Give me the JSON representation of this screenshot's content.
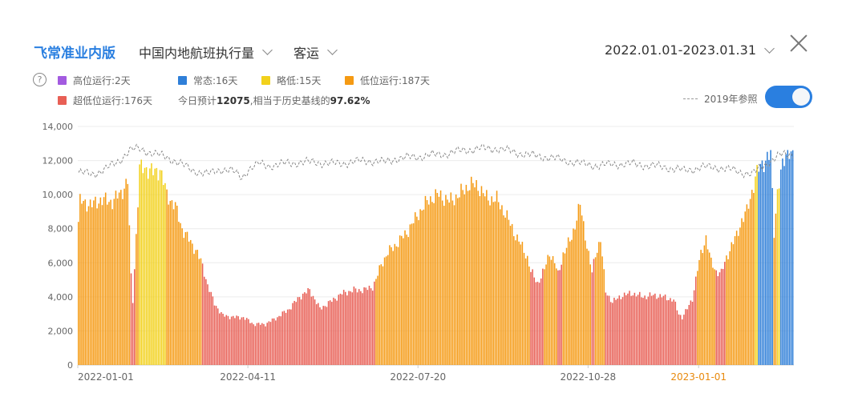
{
  "header": {
    "brand": "飞常准业内版",
    "metric": "中国内地航班执行量",
    "category": "客运",
    "date_range": "2022.01.01-2023.01.31"
  },
  "legend": [
    {
      "label": "高位运行:2天",
      "color": "#a35be0"
    },
    {
      "label": "常态:16天",
      "color": "#2f7fd8"
    },
    {
      "label": "略低:15天",
      "color": "#f2d11c"
    },
    {
      "label": "低位运行:187天",
      "color": "#f59a13"
    },
    {
      "label": "超低位运行:176天",
      "color": "#e85f55"
    }
  ],
  "note": {
    "prefix": "今日预计",
    "value": "12075",
    "middle": ",相当于历史基线的",
    "percent": "97.62%"
  },
  "reference": {
    "label": "2019年参照",
    "enabled": true
  },
  "chart_data": {
    "type": "bar",
    "ylim": [
      0,
      14000
    ],
    "yticks": [
      "0",
      "2,000",
      "4,000",
      "6,000",
      "8,000",
      "10,000",
      "12,000",
      "14,000"
    ],
    "xtick_labels": [
      {
        "label": "2022-01-01",
        "index": 0,
        "highlight": false
      },
      {
        "label": "2022-04-11",
        "index": 100,
        "highlight": false
      },
      {
        "label": "2022-07-20",
        "index": 200,
        "highlight": false
      },
      {
        "label": "2022-10-28",
        "index": 300,
        "highlight": false
      },
      {
        "label": "2023-01-01",
        "index": 365,
        "highlight": true
      }
    ],
    "segments_note": "daily bars 2022-01-01..2023-01-31, values estimated from gridlines",
    "anchors": [
      [
        0,
        8400,
        "O"
      ],
      [
        1,
        9600,
        "O"
      ],
      [
        8,
        9400,
        "O"
      ],
      [
        13,
        9700,
        "O"
      ],
      [
        20,
        9600,
        "O"
      ],
      [
        25,
        10100,
        "O"
      ],
      [
        29,
        10800,
        "O"
      ],
      [
        31,
        5200,
        "R"
      ],
      [
        32,
        3800,
        "R"
      ],
      [
        34,
        7600,
        "O"
      ],
      [
        36,
        11500,
        "Y"
      ],
      [
        39,
        11600,
        "Y"
      ],
      [
        44,
        11300,
        "Y"
      ],
      [
        48,
        11500,
        "Y"
      ],
      [
        52,
        10000,
        "O"
      ],
      [
        57,
        9300,
        "O"
      ],
      [
        61,
        8000,
        "O"
      ],
      [
        66,
        7200,
        "O"
      ],
      [
        70,
        6600,
        "O"
      ],
      [
        73,
        5800,
        "R"
      ],
      [
        76,
        4700,
        "R"
      ],
      [
        80,
        3600,
        "R"
      ],
      [
        85,
        2900,
        "R"
      ],
      [
        92,
        2800,
        "R"
      ],
      [
        97,
        2800,
        "R"
      ],
      [
        103,
        2400,
        "R"
      ],
      [
        110,
        2400,
        "R"
      ],
      [
        117,
        2800,
        "R"
      ],
      [
        124,
        3300,
        "R"
      ],
      [
        130,
        4000,
        "R"
      ],
      [
        136,
        4400,
        "R"
      ],
      [
        142,
        3300,
        "R"
      ],
      [
        148,
        3700,
        "R"
      ],
      [
        155,
        4200,
        "R"
      ],
      [
        162,
        4400,
        "R"
      ],
      [
        168,
        4400,
        "R"
      ],
      [
        173,
        4600,
        "R"
      ],
      [
        175,
        5000,
        "O"
      ],
      [
        178,
        5900,
        "O"
      ],
      [
        182,
        6600,
        "O"
      ],
      [
        188,
        7200,
        "O"
      ],
      [
        194,
        7900,
        "O"
      ],
      [
        200,
        8900,
        "O"
      ],
      [
        206,
        9700,
        "O"
      ],
      [
        212,
        10000,
        "O"
      ],
      [
        218,
        9600,
        "O"
      ],
      [
        224,
        10000,
        "O"
      ],
      [
        230,
        10600,
        "O"
      ],
      [
        235,
        10500,
        "O"
      ],
      [
        240,
        9800,
        "O"
      ],
      [
        246,
        9700,
        "O"
      ],
      [
        251,
        8900,
        "O"
      ],
      [
        256,
        7800,
        "O"
      ],
      [
        261,
        6900,
        "O"
      ],
      [
        264,
        6300,
        "O"
      ],
      [
        266,
        5500,
        "R"
      ],
      [
        270,
        4800,
        "R"
      ],
      [
        274,
        5600,
        "O"
      ],
      [
        277,
        6600,
        "O"
      ],
      [
        280,
        6000,
        "O"
      ],
      [
        282,
        5300,
        "R"
      ],
      [
        285,
        6500,
        "O"
      ],
      [
        290,
        7500,
        "O"
      ],
      [
        295,
        9400,
        "O"
      ],
      [
        298,
        7600,
        "O"
      ],
      [
        302,
        5400,
        "R"
      ],
      [
        304,
        6500,
        "O"
      ],
      [
        307,
        7400,
        "O"
      ],
      [
        310,
        4300,
        "R"
      ],
      [
        314,
        3700,
        "R"
      ],
      [
        320,
        4100,
        "R"
      ],
      [
        326,
        4200,
        "R"
      ],
      [
        332,
        4000,
        "R"
      ],
      [
        338,
        4100,
        "R"
      ],
      [
        344,
        4000,
        "R"
      ],
      [
        350,
        3800,
        "R"
      ],
      [
        353,
        3000,
        "R"
      ],
      [
        355,
        2800,
        "R"
      ],
      [
        358,
        3300,
        "R"
      ],
      [
        361,
        3900,
        "R"
      ],
      [
        364,
        5600,
        "O"
      ],
      [
        366,
        6500,
        "O"
      ],
      [
        369,
        7500,
        "O"
      ],
      [
        372,
        6000,
        "O"
      ],
      [
        375,
        5500,
        "R"
      ],
      [
        378,
        5400,
        "R"
      ],
      [
        381,
        6300,
        "O"
      ],
      [
        384,
        7000,
        "O"
      ],
      [
        387,
        7600,
        "O"
      ],
      [
        390,
        8500,
        "O"
      ],
      [
        393,
        9000,
        "O"
      ],
      [
        396,
        10200,
        "O"
      ],
      [
        398,
        11000,
        "Y"
      ],
      [
        400,
        11500,
        "B"
      ],
      [
        404,
        12100,
        "B"
      ],
      [
        407,
        12300,
        "B"
      ],
      [
        409,
        7800,
        "O"
      ],
      [
        411,
        10200,
        "Y"
      ],
      [
        413,
        11200,
        "B"
      ],
      [
        416,
        12400,
        "B"
      ],
      [
        418,
        12700,
        "B"
      ],
      [
        420,
        12100,
        "B"
      ]
    ],
    "baseline_2019_anchors": [
      [
        0,
        11300
      ],
      [
        8,
        11200
      ],
      [
        16,
        11500
      ],
      [
        24,
        12000
      ],
      [
        30,
        12600
      ],
      [
        36,
        12700
      ],
      [
        44,
        12400
      ],
      [
        52,
        12200
      ],
      [
        60,
        11800
      ],
      [
        68,
        11400
      ],
      [
        76,
        11200
      ],
      [
        84,
        11500
      ],
      [
        90,
        11400
      ],
      [
        96,
        11000
      ],
      [
        100,
        11500
      ],
      [
        106,
        11800
      ],
      [
        112,
        11700
      ],
      [
        120,
        11800
      ],
      [
        130,
        11900
      ],
      [
        140,
        11900
      ],
      [
        150,
        11800
      ],
      [
        160,
        11900
      ],
      [
        170,
        12000
      ],
      [
        180,
        11900
      ],
      [
        186,
        12100
      ],
      [
        196,
        12200
      ],
      [
        206,
        12300
      ],
      [
        216,
        12400
      ],
      [
        226,
        12600
      ],
      [
        236,
        12700
      ],
      [
        246,
        12700
      ],
      [
        256,
        12500
      ],
      [
        266,
        12300
      ],
      [
        276,
        12200
      ],
      [
        286,
        12000
      ],
      [
        296,
        11800
      ],
      [
        306,
        11700
      ],
      [
        316,
        11800
      ],
      [
        326,
        11800
      ],
      [
        336,
        11700
      ],
      [
        346,
        11600
      ],
      [
        356,
        11400
      ],
      [
        366,
        11600
      ],
      [
        376,
        11600
      ],
      [
        386,
        11400
      ],
      [
        396,
        11200
      ],
      [
        404,
        11800
      ],
      [
        412,
        12300
      ],
      [
        420,
        12400
      ]
    ],
    "colors": {
      "B": "#2f7fd8",
      "Y": "#f2d11c",
      "O": "#f59a13",
      "R": "#e85f55",
      "P": "#a35be0"
    },
    "gridlines": true
  }
}
